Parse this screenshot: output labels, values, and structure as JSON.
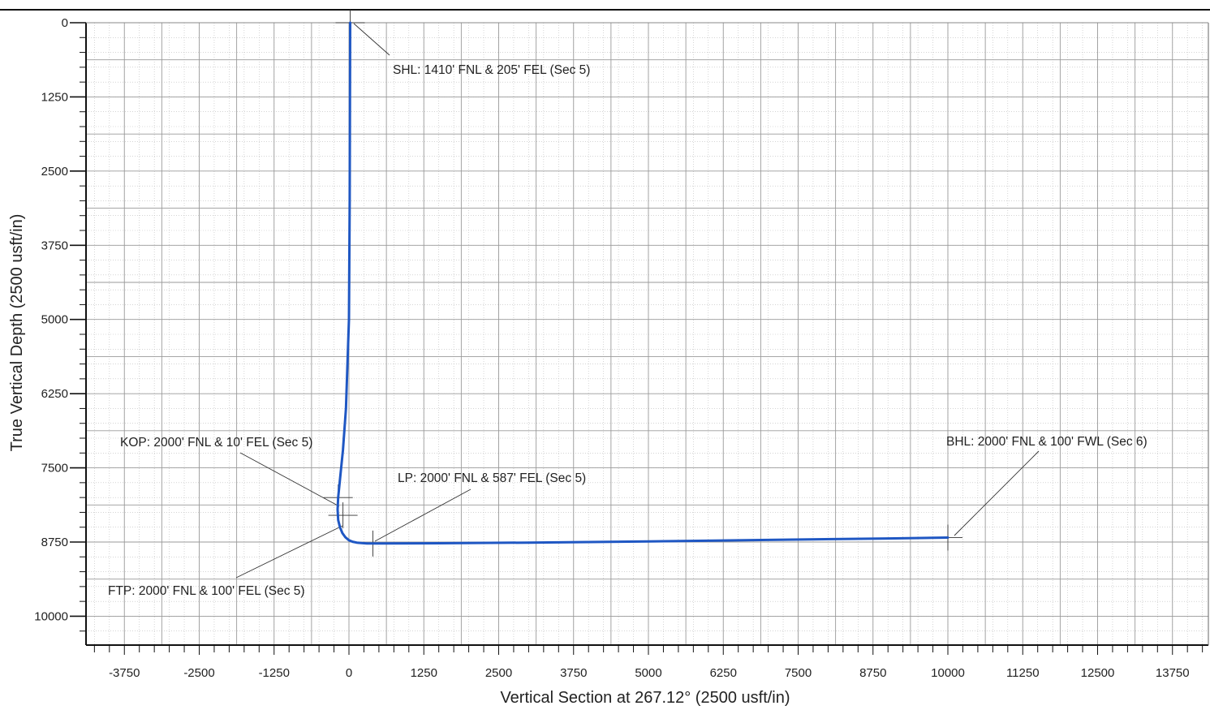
{
  "chart_data": {
    "type": "line",
    "title": "",
    "xlabel": "Vertical Section at 267.12° (2500 usft/in)",
    "ylabel": "True Vertical Depth (2500 usft/in)",
    "xlim": [
      -4400,
      14400
    ],
    "ylim": [
      0,
      10600
    ],
    "y_inverted": true,
    "grid": true,
    "x_ticks": [
      -3750,
      -2500,
      -1250,
      0,
      1250,
      2500,
      3750,
      5000,
      6250,
      7500,
      8750,
      10000,
      11250,
      12500,
      13750
    ],
    "y_ticks": [
      0,
      1250,
      2500,
      3750,
      5000,
      6250,
      7500,
      8750,
      10000
    ],
    "series": [
      {
        "color": "#1f57c3",
        "x": [
          20,
          18,
          12,
          0,
          -50,
          -100,
          -150,
          -180,
          -190,
          -180,
          -150,
          -110,
          -60,
          0,
          60,
          130,
          210,
          300,
          400,
          500,
          1500,
          3000,
          5000,
          7000,
          9000,
          10000
        ],
        "y": [
          0,
          1000,
          3000,
          5000,
          6500,
          7200,
          7700,
          8000,
          8200,
          8380,
          8500,
          8600,
          8670,
          8720,
          8745,
          8760,
          8768,
          8773,
          8775,
          8775,
          8770,
          8760,
          8740,
          8715,
          8690,
          8675
        ]
      }
    ],
    "annotations": [
      {
        "label": "SHL: 1410' FNL & 205' FEL (Sec 5)",
        "x": 20,
        "y": 0
      },
      {
        "label": "KOP: 2000' FNL & 10' FEL (Sec 5)",
        "x": -180,
        "y": 8000
      },
      {
        "label": "LP: 2000' FNL & 587' FEL (Sec 5)",
        "x": 400,
        "y": 8775
      },
      {
        "label": "FTP: 2000' FNL & 100' FEL (Sec 5)",
        "x": -100,
        "y": 8300
      },
      {
        "label": "BHL: 2000' FNL & 100' FWL (Sec 6)",
        "x": 10000,
        "y": 8675
      }
    ]
  }
}
